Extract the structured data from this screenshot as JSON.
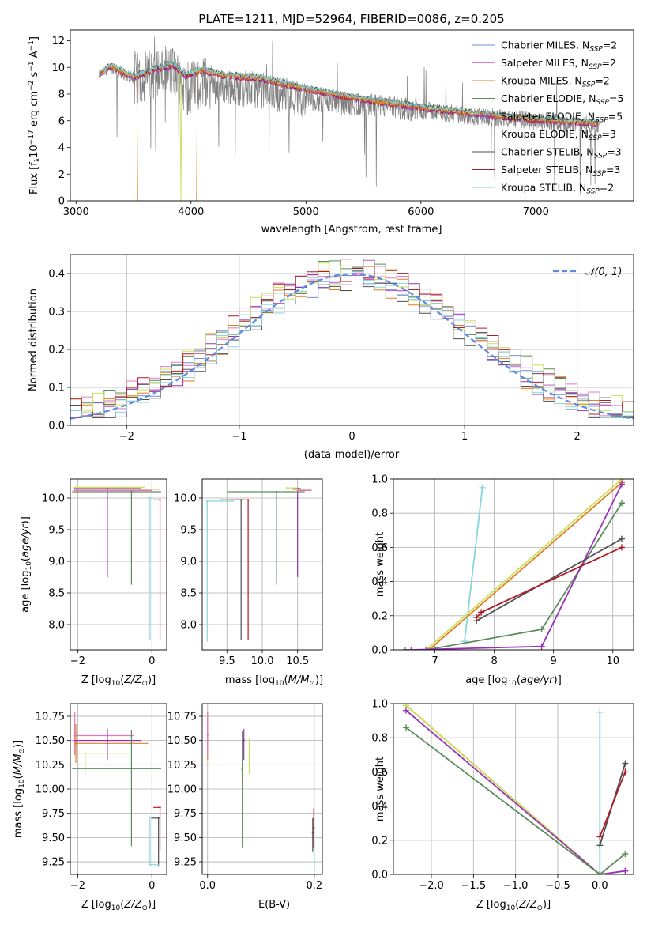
{
  "figure_title": "PLATE=1211, MJD=52964, FIBERID=0086, z=0.205",
  "colors": {
    "Chabrier MILES": "#6e8ed6",
    "Salpeter MILES": "#e07ac3",
    "Kroupa MILES": "#e37f22",
    "Chabrier ELODIE": "#5c8c5c",
    "Salpeter ELODIE": "#9a30b5",
    "Kroupa ELODIE": "#c8e05a",
    "Chabrier STELIB": "#505050",
    "Salpeter STELIB": "#b01c25",
    "Kroupa STELIB": "#86d6dc",
    "data": "#808080",
    "normal": "#5b8ae0"
  },
  "chart_data": [
    {
      "type": "line",
      "panel": "spectrum",
      "xlabel": "wavelength [Angstrom, rest frame]",
      "ylabel": "Flux [f_λ10^-17 erg cm^-2 s^-1 A^-1]",
      "xlim": [
        2950,
        7850
      ],
      "ylim": [
        0,
        12.8
      ],
      "xticks": [
        3000,
        4000,
        5000,
        6000,
        7000
      ],
      "yticks": [
        0,
        2,
        4,
        6,
        8,
        10,
        12
      ],
      "grid": false,
      "legend_position": "top-right",
      "legend": [
        {
          "series": "Chabrier MILES",
          "label": "Chabrier MILES, N",
          "sub": "SSP",
          "tail": "=2"
        },
        {
          "series": "Salpeter MILES",
          "label": "Salpeter MILES, N",
          "sub": "SSP",
          "tail": "=2"
        },
        {
          "series": "Kroupa MILES",
          "label": "Kroupa MILES, N",
          "sub": "SSP",
          "tail": "=2"
        },
        {
          "series": "Chabrier ELODIE",
          "label": "Chabrier ELODIE, N",
          "sub": "SSP",
          "tail": "=5"
        },
        {
          "series": "Salpeter ELODIE",
          "label": "Salpeter ELODIE, N",
          "sub": "SSP",
          "tail": "=5"
        },
        {
          "series": "Kroupa ELODIE",
          "label": "Kroupa ELODIE, N",
          "sub": "SSP",
          "tail": "=3"
        },
        {
          "series": "Chabrier STELIB",
          "label": "Chabrier STELIB, N",
          "sub": "SSP",
          "tail": "=3"
        },
        {
          "series": "Salpeter STELIB",
          "label": "Salpeter STELIB, N",
          "sub": "SSP",
          "tail": "=3"
        },
        {
          "series": "Kroupa STELIB",
          "label": "Kroupa STELIB, N",
          "sub": "SSP",
          "tail": "=2"
        }
      ],
      "data_continuum": {
        "x": [
          3200,
          3300,
          3500,
          3700,
          3850,
          3950,
          4100,
          4300,
          4600,
          5000,
          5500,
          6000,
          6500,
          7000,
          7400,
          7550
        ],
        "y": [
          9.4,
          10.0,
          9.0,
          9.6,
          9.7,
          8.3,
          8.9,
          8.5,
          8.3,
          7.6,
          7.2,
          6.8,
          6.3,
          6.0,
          5.7,
          5.6
        ]
      },
      "model_continuum": {
        "x": [
          3200,
          3300,
          3500,
          3700,
          3850,
          3950,
          4100,
          4300,
          4600,
          5000,
          5500,
          6000,
          6500,
          7000,
          7400,
          7550
        ],
        "y": [
          9.5,
          10.1,
          9.3,
          9.9,
          10.2,
          9.4,
          9.8,
          9.4,
          9.2,
          8.4,
          7.6,
          7.0,
          6.5,
          6.1,
          5.9,
          5.8
        ]
      },
      "model_dropouts": [
        {
          "series": "Kroupa MILES",
          "start": 3535,
          "end": 4055
        },
        {
          "series": "Kroupa ELODIE",
          "start": 3910,
          "end": 3915
        },
        {
          "series": "Kroupa STELIB",
          "start": 5705,
          "end": 5710
        }
      ]
    },
    {
      "type": "step",
      "panel": "residual histogram",
      "xlabel": "(data-model)/error",
      "ylabel": "Normed distribution",
      "xlim": [
        -2.5,
        2.5
      ],
      "ylim": [
        0,
        0.45
      ],
      "xticks": [
        -2,
        -1,
        0,
        1,
        2
      ],
      "xtick_labels": [
        "−2",
        "−1",
        "0",
        "1",
        "2"
      ],
      "yticks": [
        0.0,
        0.1,
        0.2,
        0.3,
        0.4
      ],
      "ytick_labels": [
        "0.0",
        "0.1",
        "0.2",
        "0.3",
        "0.4"
      ],
      "grid": true,
      "legend_position": "top-right",
      "legend_label": "𝒩(0, 1)",
      "bin_width": 0.1
    },
    {
      "type": "errorbar",
      "panel": "age vs Z",
      "xlabel": "Z [log10(Z/Z⊙)]",
      "ylabel": "age [log10(age/yr)]",
      "xlim": [
        -2.2,
        0.4
      ],
      "ylim": [
        7.6,
        10.3
      ],
      "xticks": [
        -2,
        0
      ],
      "xtick_labels": [
        "−2",
        "0"
      ],
      "yticks": [
        8.0,
        8.5,
        9.0,
        9.5,
        10.0
      ],
      "ytick_labels": [
        "8.0",
        "8.5",
        "9.0",
        "9.5",
        "10.0"
      ],
      "grid": true,
      "points": [
        {
          "series": "Salpeter ELODIE",
          "x": -1.2,
          "y": 10.15,
          "xerr": [
            0.9,
            0.9
          ],
          "yerr": [
            1.4,
            0
          ]
        },
        {
          "series": "Chabrier ELODIE",
          "x": -0.55,
          "y": 10.1,
          "xerr": [
            1.6,
            0.8
          ],
          "yerr": [
            1.47,
            0
          ]
        },
        {
          "series": "Kroupa STELIB",
          "x": -0.05,
          "y": 10.0,
          "xerr": [
            0,
            0
          ],
          "yerr": [
            2.25,
            0
          ]
        },
        {
          "series": "Salpeter STELIB",
          "x": 0.22,
          "y": 9.97,
          "xerr": [
            0.18,
            0
          ],
          "yerr": [
            2.22,
            0
          ]
        },
        {
          "series": "Kroupa MILES",
          "x": -0.3,
          "y": 10.14,
          "xerr": [
            1.8,
            0.5
          ],
          "yerr": [
            0,
            0
          ]
        },
        {
          "series": "Salpeter MILES",
          "x": -0.5,
          "y": 10.12,
          "xerr": [
            1.6,
            0.5
          ],
          "yerr": [
            0,
            0
          ]
        },
        {
          "series": "Kroupa ELODIE",
          "x": -0.8,
          "y": 10.17,
          "xerr": [
            1.3,
            0.6
          ],
          "yerr": [
            0,
            0
          ]
        }
      ]
    },
    {
      "type": "errorbar",
      "panel": "age vs mass",
      "xlabel": "mass [log10(M/M⊙)]",
      "xlim": [
        9.15,
        10.85
      ],
      "ylim": [
        7.6,
        10.3
      ],
      "xticks": [
        9.5,
        10.0,
        10.5
      ],
      "xtick_labels": [
        "9.5",
        "10.0",
        "10.5"
      ],
      "yticks": [
        8.0,
        8.5,
        9.0,
        9.5,
        10.0
      ],
      "ytick_labels": [
        "8.0",
        "8.5",
        "9.0",
        "9.5",
        "10.0"
      ],
      "grid": true,
      "points": [
        {
          "series": "Salpeter ELODIE",
          "x": 10.5,
          "y": 10.15,
          "xerr": [
            0.08,
            0.05
          ],
          "yerr": [
            1.4,
            0
          ]
        },
        {
          "series": "Chabrier ELODIE",
          "x": 10.2,
          "y": 10.1,
          "xerr": [
            0.7,
            0.4
          ],
          "yerr": [
            1.47,
            0
          ]
        },
        {
          "series": "Kroupa STELIB",
          "x": 9.22,
          "y": 9.95,
          "xerr": [
            0,
            0.38
          ],
          "yerr": [
            2.22,
            0
          ]
        },
        {
          "series": "Salpeter STELIB",
          "x": 9.8,
          "y": 9.97,
          "xerr": [
            0.4,
            0
          ],
          "yerr": [
            2.22,
            0
          ]
        },
        {
          "series": "Chabrier STELIB",
          "x": 9.7,
          "y": 9.97,
          "xerr": [
            0.15,
            0
          ],
          "yerr": [
            2.22,
            0
          ]
        },
        {
          "series": "Kroupa MILES",
          "x": 10.45,
          "y": 10.14,
          "xerr": [
            0,
            0.25
          ],
          "yerr": [
            0,
            0
          ]
        },
        {
          "series": "Salpeter MILES",
          "x": 10.5,
          "y": 10.12,
          "xerr": [
            0,
            0.2
          ],
          "yerr": [
            0,
            0
          ]
        },
        {
          "series": "Kroupa ELODIE",
          "x": 10.35,
          "y": 10.16,
          "xerr": [
            0,
            0.15
          ],
          "yerr": [
            0,
            0
          ]
        }
      ]
    },
    {
      "type": "line",
      "panel": "mass weight vs age",
      "xlabel": "age [log10(age/yr)]",
      "ylabel": "mass weight",
      "xlim": [
        6.3,
        10.35
      ],
      "ylim": [
        0,
        1.0
      ],
      "xticks": [
        7,
        8,
        9,
        10
      ],
      "yticks": [
        0.0,
        0.2,
        0.4,
        0.6,
        0.8,
        1.0
      ],
      "ytick_labels": [
        "0.0",
        "0.2",
        "0.4",
        "0.6",
        "0.8",
        "1.0"
      ],
      "grid": true,
      "series": [
        {
          "name": "Kroupa STELIB",
          "x": [
            7.5,
            7.8
          ],
          "y": [
            0.05,
            0.95
          ]
        },
        {
          "name": "Kroupa ELODIE",
          "x": [
            6.85,
            10.15
          ],
          "y": [
            0.0,
            1.0
          ]
        },
        {
          "name": "Kroupa MILES",
          "x": [
            6.9,
            10.15
          ],
          "y": [
            0.0,
            0.98
          ]
        },
        {
          "name": "Chabrier ELODIE",
          "x": [
            6.5,
            6.85,
            8.8,
            10.15
          ],
          "y": [
            0.0,
            0.0,
            0.12,
            0.86
          ]
        },
        {
          "name": "Salpeter ELODIE",
          "x": [
            6.6,
            8.8,
            10.15
          ],
          "y": [
            0.0,
            0.02,
            0.97
          ]
        },
        {
          "name": "Chabrier STELIB",
          "x": [
            7.7,
            10.15
          ],
          "y": [
            0.17,
            0.65
          ]
        },
        {
          "name": "Salpeter STELIB",
          "x": [
            7.7,
            7.78,
            10.15
          ],
          "y": [
            0.19,
            0.22,
            0.6
          ]
        }
      ]
    },
    {
      "type": "errorbar",
      "panel": "mass vs Z",
      "xlabel": "Z [log10(Z/Z⊙)]",
      "ylabel": "mass [log10(M/M⊙)]",
      "xlim": [
        -2.2,
        0.4
      ],
      "ylim": [
        9.12,
        10.88
      ],
      "xticks": [
        -2,
        0
      ],
      "xtick_labels": [
        "−2",
        "0"
      ],
      "yticks": [
        9.25,
        9.5,
        9.75,
        10.0,
        10.25,
        10.5,
        10.75
      ],
      "ytick_labels": [
        "9.25",
        "9.50",
        "9.75",
        "10.00",
        "10.25",
        "10.50",
        "10.75"
      ],
      "grid": true,
      "points": [
        {
          "series": "Salpeter MILES",
          "x": -2.08,
          "y": 10.55,
          "xerr": [
            0,
            1.6
          ],
          "yerr": [
            0.2,
            0.25
          ]
        },
        {
          "series": "Kroupa MILES",
          "x": -2.05,
          "y": 10.47,
          "xerr": [
            0,
            1.95
          ],
          "yerr": [
            0.2,
            0.2
          ]
        },
        {
          "series": "Salpeter ELODIE",
          "x": -1.2,
          "y": 10.5,
          "xerr": [
            0.9,
            0.9
          ],
          "yerr": [
            0.2,
            0.12
          ]
        },
        {
          "series": "Kroupa ELODIE",
          "x": -1.8,
          "y": 10.37,
          "xerr": [
            0.3,
            1.2
          ],
          "yerr": [
            0.22,
            0
          ]
        },
        {
          "series": "Chabrier ELODIE",
          "x": -0.55,
          "y": 10.21,
          "xerr": [
            1.6,
            0.8
          ],
          "yerr": [
            0.8,
            0.4
          ]
        },
        {
          "series": "Salpeter STELIB",
          "x": 0.22,
          "y": 9.81,
          "xerr": [
            0.18,
            0
          ],
          "yerr": [
            0.44,
            0
          ]
        },
        {
          "series": "Chabrier STELIB",
          "x": 0.18,
          "y": 9.7,
          "xerr": [
            0.2,
            0
          ],
          "yerr": [
            0.5,
            0
          ]
        },
        {
          "series": "Kroupa STELIB",
          "x": -0.05,
          "y": 9.22,
          "xerr": [
            0,
            0.25
          ],
          "yerr": [
            0,
            0.5
          ]
        }
      ]
    },
    {
      "type": "errorbar",
      "panel": "mass vs E(B-V)",
      "xlabel": "E(B-V)",
      "xlim": [
        -0.01,
        0.215
      ],
      "ylim": [
        9.12,
        10.88
      ],
      "xticks": [
        0.0,
        0.2
      ],
      "xtick_labels": [
        "0.0",
        "0.2"
      ],
      "yticks": [
        9.25,
        9.5,
        9.75,
        10.0,
        10.25,
        10.5,
        10.75
      ],
      "ytick_labels": [
        "9.25",
        "9.50",
        "9.75",
        "10.00",
        "10.25",
        "10.50",
        "10.75"
      ],
      "grid": true,
      "points": [
        {
          "series": "Kroupa MILES",
          "x": 0.0,
          "y": 10.5,
          "xerr": [
            0,
            0
          ],
          "yerr": [
            0.2,
            0.3
          ]
        },
        {
          "series": "Salpeter MILES",
          "x": 0.0,
          "y": 10.55,
          "xerr": [
            0,
            0
          ],
          "yerr": [
            0.2,
            0.25
          ]
        },
        {
          "series": "Chabrier ELODIE",
          "x": 0.065,
          "y": 10.2,
          "xerr": [
            0,
            0
          ],
          "yerr": [
            0.8,
            0.4
          ]
        },
        {
          "series": "Salpeter ELODIE",
          "x": 0.068,
          "y": 10.5,
          "xerr": [
            0,
            0
          ],
          "yerr": [
            0.2,
            0.12
          ]
        },
        {
          "series": "Kroupa ELODIE",
          "x": 0.078,
          "y": 10.37,
          "xerr": [
            0,
            0
          ],
          "yerr": [
            0.22,
            0.15
          ]
        },
        {
          "series": "Salpeter STELIB",
          "x": 0.199,
          "y": 9.6,
          "xerr": [
            0,
            0
          ],
          "yerr": [
            0.2,
            0.2
          ]
        },
        {
          "series": "Chabrier STELIB",
          "x": 0.197,
          "y": 9.55,
          "xerr": [
            0,
            0
          ],
          "yerr": [
            0.2,
            0.15
          ]
        },
        {
          "series": "Kroupa STELIB",
          "x": 0.2,
          "y": 9.25,
          "xerr": [
            0,
            0
          ],
          "yerr": [
            0.1,
            0.1
          ]
        }
      ]
    },
    {
      "type": "line",
      "panel": "mass weight vs Z",
      "xlabel": "Z [log10(Z/Z⊙)]",
      "ylabel": "mass weight",
      "xlim": [
        -2.45,
        0.4
      ],
      "ylim": [
        0,
        1.0
      ],
      "xticks": [
        -2.0,
        -1.5,
        -1.0,
        -0.5,
        0.0
      ],
      "xtick_labels": [
        "−2.0",
        "−1.5",
        "−1.0",
        "−0.5",
        "0.0"
      ],
      "yticks": [
        0.0,
        0.2,
        0.4,
        0.6,
        0.8,
        1.0
      ],
      "ytick_labels": [
        "0.0",
        "0.2",
        "0.4",
        "0.6",
        "0.8",
        "1.0"
      ],
      "grid": true,
      "series": [
        {
          "name": "Kroupa STELIB",
          "x": [
            0.0,
            0.0
          ],
          "y": [
            0.0,
            0.95
          ]
        },
        {
          "name": "Kroupa MILES",
          "x": [
            -2.3,
            0.0
          ],
          "y": [
            0.99,
            0.0
          ]
        },
        {
          "name": "Kroupa ELODIE",
          "x": [
            -2.3,
            0.0
          ],
          "y": [
            0.99,
            0.0
          ]
        },
        {
          "name": "Salpeter ELODIE",
          "x": [
            -2.3,
            0.0,
            0.3
          ],
          "y": [
            0.96,
            0.0,
            0.02
          ]
        },
        {
          "name": "Chabrier ELODIE",
          "x": [
            -2.3,
            0.0,
            0.3
          ],
          "y": [
            0.86,
            0.0,
            0.12
          ]
        },
        {
          "name": "Chabrier STELIB",
          "x": [
            0.0,
            0.3
          ],
          "y": [
            0.17,
            0.65
          ]
        },
        {
          "name": "Salpeter STELIB",
          "x": [
            0.0,
            0.3
          ],
          "y": [
            0.22,
            0.6
          ]
        }
      ]
    }
  ]
}
